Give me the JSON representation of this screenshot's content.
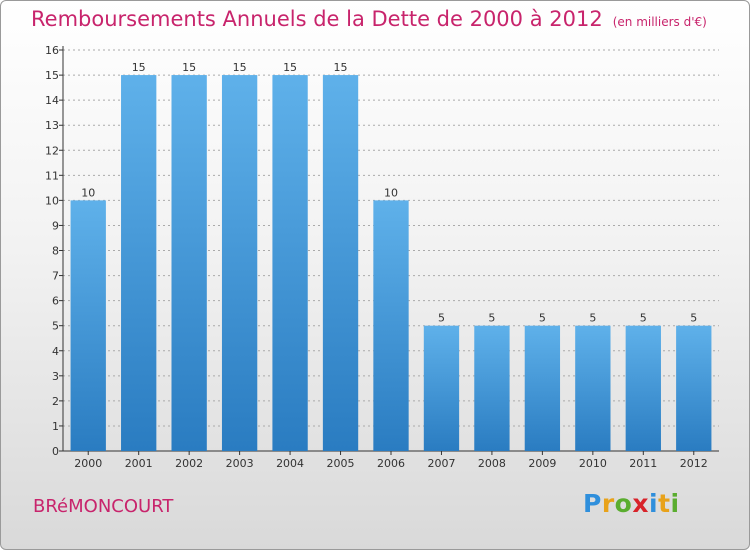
{
  "header": {
    "title": "Remboursements Annuels de la Dette de 2000 à 2012",
    "unit": "(en milliers d'€)"
  },
  "footer": {
    "commune": "BRéMONCOURT",
    "logo_letters": [
      "P",
      "r",
      "o",
      "x",
      "i",
      "t",
      "i"
    ],
    "logo_colors": [
      "#2f8fdc",
      "#e8a21a",
      "#5aad2f",
      "#d8232a",
      "#2f8fdc",
      "#e8a21a",
      "#5aad2f"
    ]
  },
  "colors": {
    "title": "#c8246c",
    "bar_top": "#5fb1ea",
    "bar_bottom": "#2a7cc1",
    "axis": "#333333",
    "gridline": "#aaaaaa"
  },
  "chart_data": {
    "type": "bar",
    "categories": [
      "2000",
      "2001",
      "2002",
      "2003",
      "2004",
      "2005",
      "2006",
      "2007",
      "2008",
      "2009",
      "2010",
      "2011",
      "2012"
    ],
    "values": [
      10,
      15,
      15,
      15,
      15,
      15,
      10,
      5,
      5,
      5,
      5,
      5,
      5
    ],
    "ylim": [
      0,
      16
    ],
    "yticks": [
      0,
      1,
      2,
      3,
      4,
      5,
      6,
      7,
      8,
      9,
      10,
      11,
      12,
      13,
      14,
      15,
      16
    ],
    "data_labels": [
      "10",
      "15",
      "15",
      "15",
      "15",
      "15",
      "10",
      "5",
      "5",
      "5",
      "5",
      "5",
      "5"
    ],
    "grid": true
  }
}
